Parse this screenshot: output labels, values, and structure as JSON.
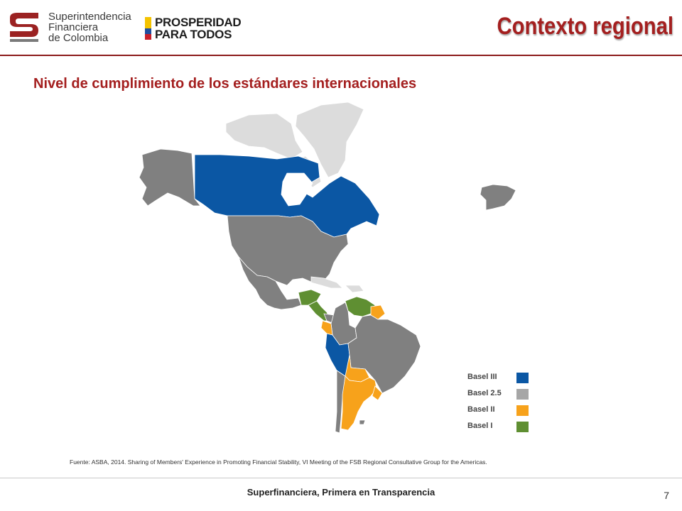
{
  "header": {
    "org_line1": "Superintendencia",
    "org_line2": "Financiera",
    "org_line3": "de Colombia",
    "campaign_line1": "PROSPERIDAD",
    "campaign_line2": "PARA TODOS",
    "title": "Contexto regional"
  },
  "subtitle": "Nivel de cumplimiento de los estándares internacionales",
  "map": {
    "legend": [
      {
        "label": "Basel III",
        "color": "#0b57a4"
      },
      {
        "label": "Basel 2.5",
        "color": "#a6a6a6"
      },
      {
        "label": "Basel II",
        "color": "#f7a21b"
      },
      {
        "label": "Basel I",
        "color": "#5f8f32"
      }
    ],
    "colors": {
      "basel3": "#0b57a4",
      "basel25": "#808080",
      "basel2": "#f7a21b",
      "basel1": "#5f8f32",
      "unclassified": "#dcdcdc"
    }
  },
  "source": "Fuente: ASBA, 2014. Sharing of Members' Experience in Promoting Financial Stability, VI Meeting of the FSB Regional Consultative Group for the Americas.",
  "footer": {
    "tagline": "Superfinanciera, Primera en Transparencia",
    "page_number": "7"
  }
}
